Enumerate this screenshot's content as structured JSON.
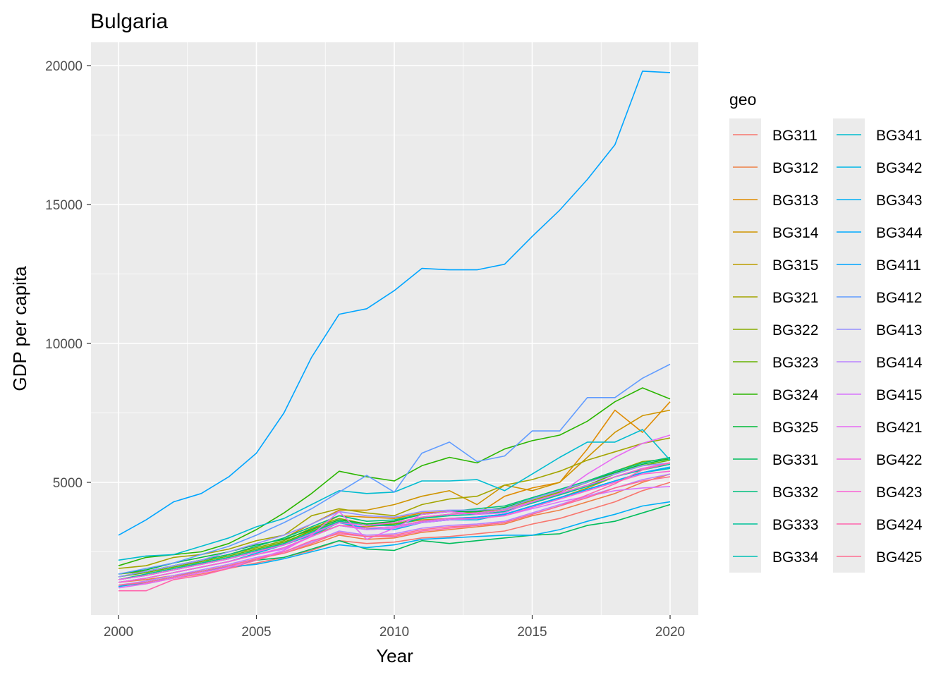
{
  "chart_data": {
    "type": "line",
    "title": "Bulgaria",
    "xlabel": "Year",
    "ylabel": "GDP per capita",
    "xlim": [
      2000,
      2020
    ],
    "ylim": [
      0,
      21000
    ],
    "x_ticks": [
      2000,
      2005,
      2010,
      2015,
      2020
    ],
    "y_ticks": [
      5000,
      10000,
      15000,
      20000
    ],
    "grid": true,
    "legend": {
      "title": "geo",
      "placement": "right",
      "columns": 2
    },
    "x": [
      2000,
      2001,
      2002,
      2003,
      2004,
      2005,
      2006,
      2007,
      2008,
      2009,
      2010,
      2011,
      2012,
      2013,
      2014,
      2015,
      2016,
      2017,
      2018,
      2019,
      2020
    ],
    "series": [
      {
        "name": "BG311",
        "color": "#F8766D",
        "values": [
          1300,
          1350,
          1550,
          1700,
          1900,
          2100,
          2300,
          2550,
          2900,
          2800,
          2850,
          3000,
          3050,
          3150,
          3250,
          3500,
          3700,
          4000,
          4300,
          4700,
          5000
        ]
      },
      {
        "name": "BG312",
        "color": "#EE8044",
        "values": [
          1400,
          1500,
          1650,
          1800,
          2000,
          2250,
          2450,
          2750,
          3100,
          2950,
          3000,
          3200,
          3300,
          3400,
          3500,
          3800,
          4000,
          4300,
          4600,
          5000,
          5300
        ]
      },
      {
        "name": "BG313",
        "color": "#E08B00",
        "values": [
          1500,
          1700,
          1900,
          2100,
          2300,
          2550,
          2800,
          3300,
          3800,
          3750,
          3700,
          3900,
          3950,
          3850,
          4500,
          4800,
          5000,
          6200,
          7600,
          6800,
          7900
        ]
      },
      {
        "name": "BG314",
        "color": "#CF9400",
        "values": [
          1600,
          1800,
          2000,
          2200,
          2400,
          2700,
          3000,
          3500,
          4000,
          4000,
          4200,
          4500,
          4700,
          4200,
          4900,
          4700,
          5000,
          5900,
          6800,
          7400,
          7600
        ]
      },
      {
        "name": "BG315",
        "color": "#BB9D00",
        "values": [
          1500,
          1650,
          1850,
          2050,
          2250,
          2500,
          2750,
          3100,
          3450,
          3400,
          3500,
          3650,
          3700,
          3750,
          3850,
          4150,
          4450,
          4800,
          5200,
          5500,
          5700
        ]
      },
      {
        "name": "BG321",
        "color": "#A3A500",
        "values": [
          1900,
          2000,
          2300,
          2400,
          2600,
          2900,
          3100,
          3800,
          4050,
          3900,
          3800,
          4200,
          4400,
          4500,
          4900,
          5100,
          5400,
          5800,
          6100,
          6400,
          6600
        ]
      },
      {
        "name": "BG322",
        "color": "#87AC00",
        "values": [
          1700,
          1800,
          2000,
          2200,
          2400,
          2650,
          2900,
          3350,
          3700,
          3500,
          3550,
          3750,
          3850,
          3950,
          4050,
          4350,
          4650,
          5000,
          5400,
          5750,
          5850
        ]
      },
      {
        "name": "BG323",
        "color": "#64B200",
        "values": [
          1600,
          1750,
          1950,
          2150,
          2350,
          2600,
          2850,
          3250,
          3600,
          3450,
          3500,
          3700,
          3850,
          3900,
          4000,
          4300,
          4600,
          4900,
          5300,
          5600,
          5800
        ]
      },
      {
        "name": "BG324",
        "color": "#2BB600",
        "values": [
          2000,
          2300,
          2400,
          2500,
          2800,
          3300,
          3900,
          4600,
          5400,
          5200,
          5050,
          5600,
          5900,
          5700,
          6200,
          6500,
          6700,
          7200,
          7900,
          8400,
          8000
        ]
      },
      {
        "name": "BG325",
        "color": "#00BA38",
        "values": [
          1700,
          1850,
          2100,
          2300,
          2500,
          2750,
          2950,
          3300,
          3650,
          3500,
          3600,
          3850,
          3950,
          3950,
          4100,
          4400,
          4700,
          5000,
          5350,
          5650,
          5850
        ]
      },
      {
        "name": "BG331",
        "color": "#00BD5C",
        "values": [
          1300,
          1400,
          1600,
          1800,
          2000,
          2200,
          2300,
          2600,
          2900,
          2600,
          2550,
          2900,
          2800,
          2900,
          3000,
          3100,
          3150,
          3450,
          3600,
          3900,
          4200
        ]
      },
      {
        "name": "BG332",
        "color": "#00BF7D",
        "values": [
          1600,
          1800,
          2000,
          2200,
          2400,
          2700,
          3000,
          3400,
          3800,
          3600,
          3650,
          3850,
          3950,
          4050,
          4150,
          4450,
          4750,
          5050,
          5400,
          5700,
          5900
        ]
      },
      {
        "name": "BG333",
        "color": "#00C19A",
        "values": [
          1500,
          1700,
          1900,
          2100,
          2300,
          2550,
          2800,
          3200,
          3600,
          3450,
          3450,
          3700,
          3800,
          3850,
          3950,
          4250,
          4550,
          4850,
          5200,
          5450,
          5650
        ]
      },
      {
        "name": "BG334",
        "color": "#00C0B5",
        "values": [
          1400,
          1550,
          1750,
          1950,
          2150,
          2400,
          2650,
          3050,
          3450,
          3300,
          3350,
          3550,
          3650,
          3750,
          3850,
          4150,
          4450,
          4750,
          5050,
          5350,
          5500
        ]
      },
      {
        "name": "BG341",
        "color": "#00BCD0",
        "values": [
          2200,
          2350,
          2400,
          2700,
          3000,
          3400,
          3700,
          4200,
          4700,
          4600,
          4650,
          5050,
          5050,
          5100,
          4700,
          5300,
          5900,
          6450,
          6450,
          6900,
          5800
        ]
      },
      {
        "name": "BG342",
        "color": "#00B8E7",
        "values": [
          1400,
          1550,
          1750,
          1950,
          2150,
          2450,
          2750,
          3100,
          3550,
          3350,
          3300,
          3550,
          3650,
          3650,
          3850,
          4150,
          4450,
          4750,
          5050,
          5350,
          5550
        ]
      },
      {
        "name": "BG343",
        "color": "#00B0F6",
        "values": [
          1250,
          1400,
          1600,
          1800,
          1950,
          2050,
          2250,
          2500,
          2750,
          2650,
          2750,
          2950,
          3000,
          3050,
          3100,
          3100,
          3300,
          3600,
          3850,
          4150,
          4300
        ]
      },
      {
        "name": "BG344",
        "color": "#00A9FF",
        "values": [
          1500,
          1650,
          1850,
          2050,
          2250,
          2500,
          2750,
          3150,
          3550,
          3350,
          3400,
          3600,
          3700,
          3750,
          3850,
          4150,
          4450,
          4750,
          5050,
          5350,
          5550
        ]
      },
      {
        "name": "BG411",
        "color": "#00A5FF",
        "values": [
          3100,
          3650,
          4300,
          4600,
          5200,
          6050,
          7500,
          9500,
          11050,
          11250,
          11900,
          12700,
          12650,
          12650,
          12850,
          13850,
          14800,
          15900,
          17150,
          19800,
          19750
        ]
      },
      {
        "name": "BG412",
        "color": "#619CFF",
        "values": [
          1700,
          1900,
          2100,
          2400,
          2700,
          3100,
          3550,
          4050,
          4650,
          5250,
          4650,
          6050,
          6450,
          5750,
          5950,
          6850,
          6850,
          8050,
          8050,
          8750,
          9250
        ]
      },
      {
        "name": "BG413",
        "color": "#9590FF",
        "values": [
          1600,
          1800,
          2000,
          2200,
          2500,
          2800,
          3100,
          3500,
          3950,
          3800,
          3750,
          3950,
          4000,
          4000,
          4050,
          4400,
          4700,
          5000,
          5300,
          5600,
          5700
        ]
      },
      {
        "name": "BG414",
        "color": "#B983FF",
        "values": [
          1300,
          1450,
          1650,
          1850,
          2050,
          2300,
          2500,
          2850,
          3250,
          3100,
          3150,
          3350,
          3450,
          3500,
          3600,
          3900,
          4200,
          4500,
          4800,
          5100,
          5300
        ]
      },
      {
        "name": "BG415",
        "color": "#D874FD",
        "values": [
          1400,
          1550,
          1750,
          1950,
          2150,
          2400,
          2600,
          3050,
          3450,
          3300,
          3350,
          3550,
          3650,
          3700,
          3800,
          4050,
          4300,
          4500,
          4700,
          4800,
          4850
        ]
      },
      {
        "name": "BG421",
        "color": "#E76BF3",
        "values": [
          1200,
          1350,
          1550,
          1750,
          1950,
          2250,
          2550,
          3100,
          3950,
          2950,
          3350,
          3850,
          3950,
          3850,
          3900,
          4300,
          4600,
          5300,
          5900,
          6400,
          6700
        ]
      },
      {
        "name": "BG422",
        "color": "#F263E2",
        "values": [
          1500,
          1650,
          1850,
          2050,
          2250,
          2500,
          2750,
          3150,
          3550,
          3450,
          3550,
          3750,
          3850,
          3900,
          4000,
          4300,
          4600,
          4900,
          5200,
          5500,
          5700
        ]
      },
      {
        "name": "BG423",
        "color": "#FA62D4",
        "values": [
          1400,
          1550,
          1750,
          1950,
          2150,
          2400,
          2650,
          3050,
          3450,
          3350,
          3400,
          3600,
          3700,
          3700,
          3800,
          4100,
          4400,
          4700,
          5000,
          5300,
          5400
        ]
      },
      {
        "name": "BG424",
        "color": "#FF65AC",
        "values": [
          1100,
          1100,
          1500,
          1650,
          1900,
          2200,
          2500,
          2900,
          3150,
          3050,
          3050,
          3250,
          3350,
          3450,
          3550,
          3850,
          4150,
          4550,
          4950,
          5450,
          5700
        ]
      },
      {
        "name": "BG425",
        "color": "#FF6C91",
        "values": [
          1300,
          1400,
          1600,
          1800,
          2000,
          2250,
          2450,
          2800,
          3200,
          3050,
          3100,
          3300,
          3400,
          3450,
          3550,
          3850,
          4150,
          4450,
          4800,
          5050,
          5200
        ]
      }
    ]
  }
}
